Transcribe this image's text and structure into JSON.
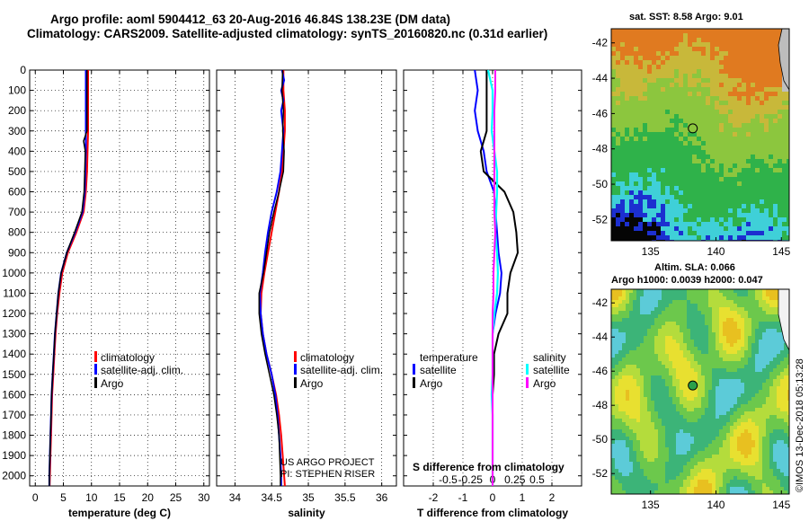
{
  "title": {
    "line1": "Argo profile: aoml 5904412_63 20-Aug-2016 46.84S 138.23E (DM data)",
    "line2": "Climatology: CARS2009. Satellite-adjusted climatology: synTS_20160820.nc (0.31d earlier)"
  },
  "colors": {
    "climatology": "#ff0000",
    "satellite": "#0000ff",
    "argo": "#000000",
    "satellite_s": "#00ffff",
    "climatology_s": "#ff00ff"
  },
  "credit": {
    "line1": "US ARGO PROJECT",
    "line2": "PI: STEPHEN RISER"
  },
  "watermark": "©IMOS 13-Dec-2018 05:13:28",
  "chart_data": [
    {
      "type": "line",
      "id": "temperature",
      "xlabel": "temperature (deg C)",
      "xlim": [
        -1,
        31
      ],
      "ylim": [
        2050,
        0
      ],
      "xticks": [
        0,
        5,
        10,
        15,
        20,
        25,
        30
      ],
      "yticks": [
        0,
        100,
        200,
        300,
        400,
        500,
        600,
        700,
        800,
        900,
        1000,
        1100,
        1200,
        1300,
        1400,
        1500,
        1600,
        1700,
        1800,
        1900,
        2000
      ],
      "legend": {
        "climatology": "climatology",
        "satellite": "satellite-adj. clim.",
        "argo": "Argo"
      },
      "series": [
        {
          "name": "climatology",
          "depth": [
            0,
            100,
            200,
            300,
            400,
            500,
            600,
            700,
            800,
            900,
            1000,
            1100,
            1200,
            1300,
            1400,
            1500,
            1600,
            1700,
            1800,
            1900,
            2000,
            2050
          ],
          "values": [
            9.4,
            9.4,
            9.4,
            9.4,
            9.3,
            9.2,
            9.0,
            8.6,
            7.3,
            5.8,
            4.8,
            4.3,
            3.9,
            3.6,
            3.4,
            3.2,
            3.0,
            2.9,
            2.8,
            2.7,
            2.6,
            2.55
          ]
        },
        {
          "name": "satellite",
          "depth": [
            0,
            100,
            200,
            300,
            400,
            500,
            600,
            700,
            800,
            900,
            1000,
            1100,
            1200,
            1300,
            1400,
            1500,
            1600,
            1700,
            1800,
            1900,
            2000,
            2050
          ],
          "values": [
            9.0,
            9.0,
            9.0,
            9.0,
            9.0,
            8.9,
            8.8,
            8.4,
            7.1,
            5.6,
            4.6,
            4.1,
            3.8,
            3.5,
            3.3,
            3.1,
            2.9,
            2.8,
            2.7,
            2.6,
            2.5,
            2.5
          ]
        },
        {
          "name": "argo",
          "depth": [
            0,
            100,
            200,
            300,
            350,
            400,
            500,
            600,
            700,
            800,
            900,
            1000,
            1100,
            1200,
            1300,
            1400,
            1500,
            1600,
            1700,
            1800,
            1900,
            2000,
            2050
          ],
          "values": [
            9.2,
            9.2,
            9.2,
            9.2,
            8.6,
            8.9,
            8.8,
            8.7,
            8.3,
            7.0,
            5.6,
            4.6,
            4.1,
            3.8,
            3.5,
            3.3,
            3.1,
            2.9,
            2.8,
            2.7,
            2.6,
            2.5,
            2.5
          ]
        }
      ]
    },
    {
      "type": "line",
      "id": "salinity",
      "xlabel": "salinity",
      "xlim": [
        33.75,
        36.2
      ],
      "ylim": [
        2050,
        0
      ],
      "xticks": [
        34,
        34.5,
        35,
        35.5,
        36
      ],
      "legend": {
        "climatology": "climatology",
        "satellite": "satellite-adj. clim.",
        "argo": "Argo"
      },
      "series": [
        {
          "name": "climatology",
          "depth": [
            0,
            100,
            200,
            300,
            400,
            500,
            600,
            700,
            800,
            900,
            1000,
            1100,
            1200,
            1300,
            1400,
            1500,
            1600,
            1700,
            1800,
            1900,
            2000,
            2050
          ],
          "values": [
            34.66,
            34.66,
            34.68,
            34.68,
            34.66,
            34.64,
            34.6,
            34.55,
            34.5,
            34.45,
            34.4,
            34.36,
            34.35,
            34.38,
            34.43,
            34.5,
            34.56,
            34.6,
            34.63,
            34.65,
            34.67,
            34.68
          ]
        },
        {
          "name": "satellite",
          "depth": [
            0,
            50,
            100,
            150,
            200,
            300,
            400,
            500,
            600,
            700,
            800,
            900,
            1000,
            1100,
            1200,
            1300,
            1400,
            1500,
            1600,
            1700,
            1800,
            1900,
            2000,
            2050
          ],
          "values": [
            34.64,
            34.67,
            34.63,
            34.66,
            34.63,
            34.66,
            34.64,
            34.62,
            34.57,
            34.5,
            34.45,
            34.41,
            34.38,
            34.34,
            34.35,
            34.38,
            34.43,
            34.5,
            34.55,
            34.58,
            34.6,
            34.62,
            34.63,
            34.63
          ]
        },
        {
          "name": "argo",
          "depth": [
            0,
            100,
            200,
            300,
            400,
            500,
            600,
            700,
            800,
            900,
            1000,
            1100,
            1200,
            1300,
            1400,
            1500,
            1600,
            1700,
            1800,
            1900,
            2000,
            2050
          ],
          "values": [
            34.65,
            34.64,
            34.66,
            34.65,
            34.67,
            34.66,
            34.6,
            34.53,
            34.47,
            34.43,
            34.39,
            34.33,
            34.33,
            34.36,
            34.41,
            34.47,
            34.53,
            34.57,
            34.6,
            34.61,
            34.62,
            34.62
          ]
        }
      ]
    },
    {
      "type": "line",
      "id": "differences",
      "xlabel": "T difference from climatology",
      "xlabel_top": "S difference from climatology",
      "xlim": [
        -3,
        3
      ],
      "ylim": [
        2050,
        0
      ],
      "xticks": [
        -2,
        -1,
        0,
        1,
        2
      ],
      "s_ticks": [
        "-0.5",
        "-0.25",
        "0",
        "0.25",
        "0.5"
      ],
      "legend": {
        "temperature": "temperature",
        "salinity": "salinity",
        "satellite": "satellite",
        "argo": "Argo"
      },
      "series": [
        {
          "name": "T satellite",
          "depth": [
            0,
            100,
            200,
            300,
            400,
            500,
            600,
            700,
            800,
            900,
            1000,
            1100,
            1200,
            1300,
            1400,
            1500,
            1600,
            1700,
            1800,
            1900,
            2000,
            2050
          ],
          "values": [
            -0.6,
            -0.5,
            -0.6,
            -0.5,
            -0.3,
            -0.2,
            0.05,
            0.1,
            0.15,
            0.2,
            0.3,
            0.25,
            0.1,
            0.0,
            0.0,
            0.0,
            0.0,
            0.0,
            0.0,
            0.0,
            0.0,
            0.0
          ]
        },
        {
          "name": "T argo",
          "depth": [
            0,
            100,
            200,
            300,
            400,
            500,
            600,
            700,
            800,
            900,
            1000,
            1100,
            1200,
            1300,
            1400,
            1500,
            1600,
            1700,
            1800,
            1900,
            2000,
            2050
          ],
          "values": [
            -0.2,
            -0.2,
            -0.2,
            -0.2,
            -0.4,
            -0.3,
            0.4,
            0.7,
            0.8,
            0.85,
            0.6,
            0.5,
            0.5,
            0.2,
            0.05,
            0.05,
            0.0,
            0.0,
            0.0,
            0.0,
            0.0,
            0.0
          ]
        },
        {
          "name": "S satellite",
          "depth": [
            0,
            100,
            200,
            300,
            400,
            500,
            600,
            700,
            800,
            900,
            1000,
            1100,
            1200,
            1300,
            1400,
            1500,
            1600,
            1700,
            1800,
            1900,
            2000,
            2050
          ],
          "values": [
            -0.05,
            0.0,
            0.0,
            -0.01,
            0.02,
            0.05,
            0.05,
            0.04,
            0.03,
            0.05,
            0.06,
            0.05,
            0.02,
            0.0,
            0.0,
            0.0,
            -0.01,
            0.0,
            0.0,
            0.0,
            0.0,
            0.0
          ]
        },
        {
          "name": "S climatology",
          "depth": [
            0,
            100,
            200,
            300,
            400,
            500,
            600,
            700,
            800,
            900,
            1000,
            1100,
            1200,
            1300,
            1400,
            1500,
            1600,
            1700,
            1800,
            1900,
            2000,
            2050
          ],
          "values": [
            0.03,
            0.03,
            0.02,
            0.02,
            0.02,
            0.02,
            0.02,
            0.02,
            0.03,
            0.02,
            0.01,
            0.01,
            0.0,
            0.0,
            0.0,
            0.0,
            0.0,
            0.0,
            0.0,
            0.0,
            0.0,
            0.0
          ]
        }
      ]
    },
    {
      "type": "heatmap",
      "id": "sst-map",
      "title": "sat. SST: 8.58 Argo: 9.01",
      "xticks": [
        135,
        140,
        145
      ],
      "yticks": [
        -42,
        -44,
        -46,
        -48,
        -50,
        -52
      ],
      "marker": {
        "lon": 138.23,
        "lat": -46.84
      }
    },
    {
      "type": "heatmap",
      "id": "sla-map",
      "title_line1": "Altim. SLA: 0.066",
      "title_line2": "Argo h1000: 0.0039 h2000: 0.047",
      "xticks": [
        135,
        140,
        145
      ],
      "yticks": [
        -42,
        -44,
        -46,
        -48,
        -50,
        -52
      ],
      "marker": {
        "lon": 138.23,
        "lat": -46.84
      }
    }
  ]
}
